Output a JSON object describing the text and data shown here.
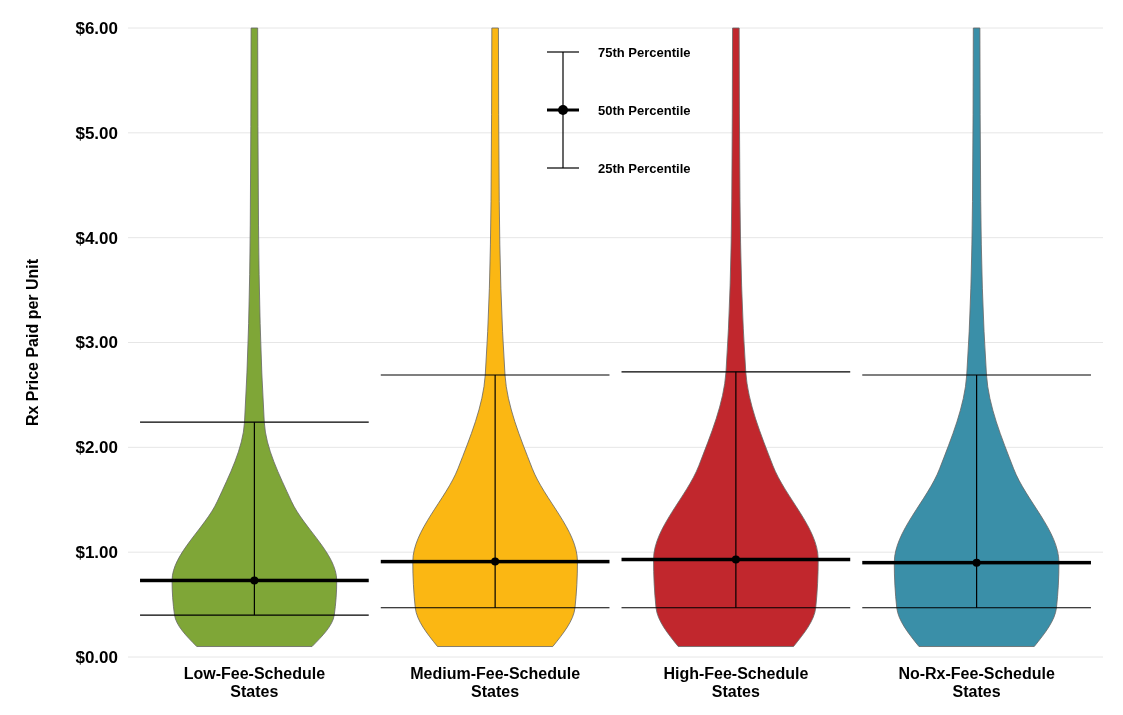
{
  "chart_data": {
    "type": "scatter",
    "ylabel": "Rx Price Paid per Unit",
    "categories": [
      "Low-Fee-Schedule States",
      "Medium-Fee-Schedule States",
      "High-Fee-Schedule States",
      "No-Rx-Fee-Schedule States"
    ],
    "colors": [
      "#7fa637",
      "#fbb713",
      "#c1272d",
      "#3a8fa8"
    ],
    "series": [
      {
        "color": "#000000",
        "values": [
          0.73,
          0.91,
          0.93,
          0.9
        ],
        "errors": [
          [
            0.4,
            2.24
          ],
          [
            0.47,
            2.69
          ],
          [
            0.47,
            2.72
          ],
          [
            0.47,
            2.69
          ]
        ]
      }
    ],
    "marker": "circle",
    "ylim": [
      0,
      6
    ],
    "yticks": [
      {
        "value": 0,
        "label": "$0.00"
      },
      {
        "value": 1,
        "label": "$1.00"
      },
      {
        "value": 2,
        "label": "$2.00"
      },
      {
        "value": 3,
        "label": "$3.00"
      },
      {
        "value": 4,
        "label": "$4.00"
      },
      {
        "value": 5,
        "label": "$5.00"
      },
      {
        "value": 6,
        "label": "$6.00"
      }
    ],
    "grid": "y",
    "annotations": [
      "75th Percentile",
      "50th Percentile",
      "25th Percentile"
    ]
  }
}
